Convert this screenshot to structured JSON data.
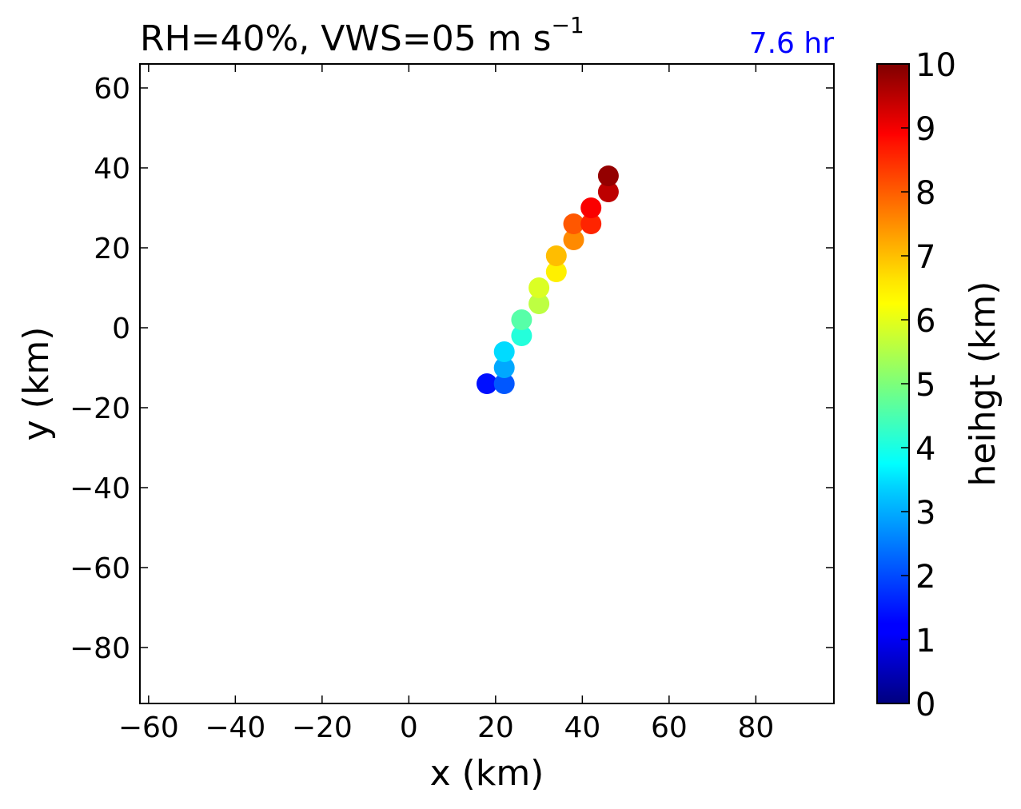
{
  "chart_data": {
    "type": "scatter",
    "title": "RH=40%, VWS=05 m s",
    "title_superscript": "−1",
    "annotation": "7.6 hr",
    "annotation_color": "#0000ff",
    "xlabel": "x (km)",
    "ylabel": "y (km)",
    "xlim": [
      -62,
      98
    ],
    "ylim": [
      -94,
      66
    ],
    "xticks": [
      -60,
      -40,
      -20,
      0,
      20,
      40,
      60,
      80
    ],
    "xtick_labels": [
      "−60",
      "−40",
      "−20",
      "0",
      "20",
      "40",
      "60",
      "80"
    ],
    "yticks": [
      60,
      40,
      20,
      0,
      -20,
      -40,
      -60,
      -80
    ],
    "ytick_labels": [
      "60",
      "40",
      "20",
      "0",
      "−20",
      "−40",
      "−60",
      "−80"
    ],
    "grid": false,
    "colorbar": {
      "label": "heihgt (km)",
      "range": [
        0,
        10
      ],
      "colormap": "jet",
      "ticks": [
        "0",
        "1",
        "2",
        "3",
        "4",
        "5",
        "6",
        "7",
        "8",
        "9",
        "10"
      ]
    },
    "points": [
      {
        "x": 18,
        "y": -14,
        "height": 1.4
      },
      {
        "x": 22,
        "y": -14,
        "height": 2.1
      },
      {
        "x": 22,
        "y": -10,
        "height": 2.9
      },
      {
        "x": 22,
        "y": -6,
        "height": 3.4
      },
      {
        "x": 26,
        "y": -2,
        "height": 4.1
      },
      {
        "x": 26,
        "y": 2,
        "height": 4.6
      },
      {
        "x": 30,
        "y": 6,
        "height": 5.6
      },
      {
        "x": 30,
        "y": 10,
        "height": 5.9
      },
      {
        "x": 34,
        "y": 14,
        "height": 6.4
      },
      {
        "x": 34,
        "y": 18,
        "height": 6.9
      },
      {
        "x": 38,
        "y": 22,
        "height": 7.4
      },
      {
        "x": 38,
        "y": 26,
        "height": 7.9
      },
      {
        "x": 42,
        "y": 26,
        "height": 8.4
      },
      {
        "x": 42,
        "y": 30,
        "height": 8.8
      },
      {
        "x": 46,
        "y": 34,
        "height": 9.4
      },
      {
        "x": 46,
        "y": 38,
        "height": 9.8
      }
    ]
  }
}
